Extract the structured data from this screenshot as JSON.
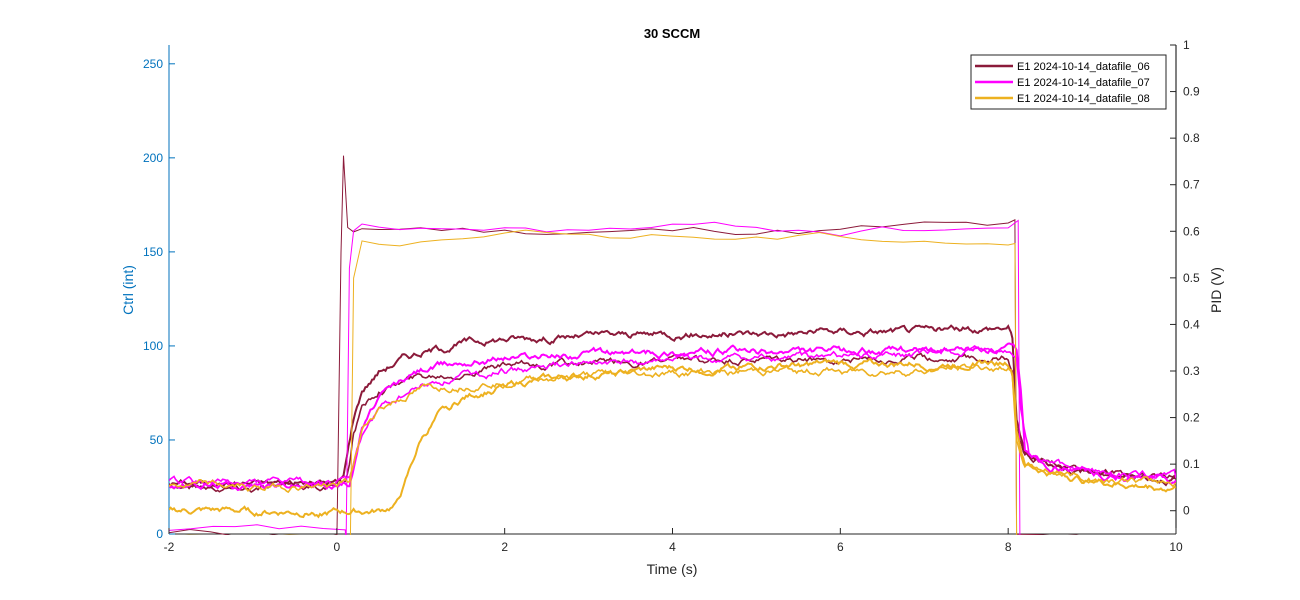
{
  "chart_data": {
    "type": "line",
    "title": "30 SCCM",
    "xlabel": "Time (s)",
    "ylabel_left": "Ctrl (int)",
    "ylabel_right": "PID (V)",
    "xlim": [
      -2,
      10
    ],
    "ylim_left": [
      0,
      260
    ],
    "ylim_right": [
      -0.05,
      1.0
    ],
    "x_ticks": [
      -2,
      0,
      2,
      4,
      6,
      8,
      10
    ],
    "x_tick_labels": [
      "-2",
      "0",
      "2",
      "4",
      "6",
      "8",
      "10"
    ],
    "y_left_ticks": [
      0,
      50,
      100,
      150,
      200,
      250
    ],
    "y_left_tick_labels": [
      "0",
      "50",
      "100",
      "150",
      "200",
      "250"
    ],
    "y_right_ticks": [
      0,
      0.1,
      0.2,
      0.3,
      0.4,
      0.5,
      0.6,
      0.7,
      0.8,
      0.9,
      1
    ],
    "y_right_tick_labels": [
      "0",
      "0.1",
      "0.2",
      "0.3",
      "0.4",
      "0.5",
      "0.6",
      "0.7",
      "0.8",
      "0.9",
      "1"
    ],
    "grid": false,
    "legend_position": "top-right",
    "left_axis_color": "#0072BD",
    "right_axis_color": "#000000",
    "series": [
      {
        "name": "E1 2024-10-14_datafile_06",
        "color": "#8B1A3A",
        "ctrl": {
          "x": [
            -2,
            -0.01,
            0.0,
            0.05,
            0.08,
            0.13,
            0.2,
            0.3,
            0.5,
            1,
            2,
            3,
            4,
            5,
            6,
            7,
            8.0,
            8.08,
            8.1,
            10
          ],
          "y": [
            0,
            0,
            -5,
            150,
            200,
            160,
            158,
            161,
            161,
            162,
            161,
            162,
            161,
            162,
            162,
            163,
            162,
            163,
            -5,
            -5
          ]
        },
        "pid_runs": [
          {
            "x": [
              -2,
              -1,
              0,
              0.08,
              0.12,
              0.2,
              0.3,
              0.5,
              0.8,
              1.0,
              1.5,
              2,
              3,
              4,
              5,
              6,
              7,
              7.5,
              8.0,
              8.05,
              8.1,
              8.2,
              8.5,
              9,
              9.5,
              10
            ],
            "y": [
              0.06,
              0.06,
              0.06,
              0.07,
              0.12,
              0.2,
              0.26,
              0.3,
              0.33,
              0.34,
              0.36,
              0.37,
              0.375,
              0.38,
              0.38,
              0.385,
              0.385,
              0.39,
              0.395,
              0.37,
              0.2,
              0.12,
              0.1,
              0.085,
              0.075,
              0.07
            ]
          },
          {
            "x": [
              -2,
              -1,
              0,
              0.1,
              0.15,
              0.2,
              0.3,
              0.5,
              1,
              1.5,
              2,
              3,
              4,
              5,
              6,
              7,
              8.0,
              8.05,
              8.1,
              8.2,
              8.5,
              9,
              10
            ],
            "y": [
              0.055,
              0.05,
              0.055,
              0.06,
              0.1,
              0.17,
              0.22,
              0.26,
              0.29,
              0.3,
              0.31,
              0.315,
              0.32,
              0.32,
              0.325,
              0.33,
              0.33,
              0.3,
              0.18,
              0.12,
              0.1,
              0.085,
              0.07
            ]
          }
        ]
      },
      {
        "name": "E1 2024-10-14_datafile_07",
        "color": "#FF00FF",
        "ctrl": {
          "x": [
            -2,
            0.1,
            0.11,
            0.15,
            0.2,
            0.3,
            0.5,
            1,
            2,
            3,
            4,
            5,
            6,
            7,
            8.0,
            8.12,
            8.14,
            10
          ],
          "y": [
            0,
            0,
            -5,
            140,
            158,
            160,
            160,
            161,
            160,
            161,
            161,
            162,
            161,
            162,
            163,
            165,
            -5,
            -5
          ]
        },
        "pid_runs": [
          {
            "x": [
              -2,
              -1,
              0,
              0.15,
              0.2,
              0.3,
              0.5,
              0.8,
              1.0,
              1.5,
              2,
              3,
              4,
              5,
              6,
              7,
              8.0,
              8.1,
              8.15,
              8.2,
              8.5,
              9,
              9.5,
              10
            ],
            "y": [
              0.055,
              0.055,
              0.055,
              0.06,
              0.1,
              0.18,
              0.24,
              0.28,
              0.3,
              0.32,
              0.33,
              0.335,
              0.34,
              0.34,
              0.34,
              0.345,
              0.345,
              0.34,
              0.25,
              0.13,
              0.1,
              0.08,
              0.07,
              0.065
            ]
          },
          {
            "x": [
              -2,
              -1,
              0,
              0.15,
              0.2,
              0.3,
              0.5,
              1,
              1.5,
              2,
              3,
              4,
              5,
              6,
              7,
              8.0,
              8.1,
              8.15,
              8.25,
              8.5,
              9,
              10
            ],
            "y": [
              0.06,
              0.06,
              0.06,
              0.065,
              0.1,
              0.16,
              0.22,
              0.27,
              0.29,
              0.3,
              0.315,
              0.32,
              0.325,
              0.33,
              0.335,
              0.34,
              0.33,
              0.22,
              0.12,
              0.1,
              0.085,
              0.07
            ]
          }
        ]
      },
      {
        "name": "E1 2024-10-14_datafile_08",
        "color": "#EDB120",
        "ctrl": {
          "x": [
            -2,
            0.15,
            0.16,
            0.2,
            0.3,
            0.5,
            1,
            2,
            3,
            4,
            5,
            6,
            7,
            8.0,
            8.08,
            8.1,
            10
          ],
          "y": [
            0,
            0,
            -5,
            140,
            157,
            157,
            158,
            158,
            158,
            159,
            159,
            159,
            159,
            158,
            158,
            -5,
            -5
          ]
        },
        "pid_runs": [
          {
            "x": [
              -2,
              -1,
              0,
              0.5,
              0.7,
              0.8,
              0.9,
              1.0,
              1.2,
              1.5,
              2,
              3,
              4,
              5,
              6,
              7,
              8.0,
              8.05,
              8.1,
              8.2,
              8.5,
              9,
              9.5,
              10
            ],
            "y": [
              0.0,
              -0.002,
              -0.003,
              -0.002,
              0.01,
              0.05,
              0.1,
              0.15,
              0.2,
              0.24,
              0.27,
              0.29,
              0.305,
              0.31,
              0.315,
              0.315,
              0.32,
              0.3,
              0.18,
              0.1,
              0.08,
              0.065,
              0.055,
              0.05
            ]
          },
          {
            "x": [
              -2,
              -1,
              0,
              0.15,
              0.2,
              0.3,
              0.5,
              1,
              2,
              3,
              4,
              5,
              6,
              7,
              8.0,
              8.05,
              8.1,
              8.2,
              8.5,
              9,
              10
            ],
            "y": [
              0.055,
              0.05,
              0.055,
              0.06,
              0.1,
              0.17,
              0.22,
              0.26,
              0.28,
              0.29,
              0.295,
              0.3,
              0.3,
              0.3,
              0.31,
              0.29,
              0.15,
              0.1,
              0.085,
              0.07,
              0.06
            ]
          }
        ]
      }
    ]
  }
}
